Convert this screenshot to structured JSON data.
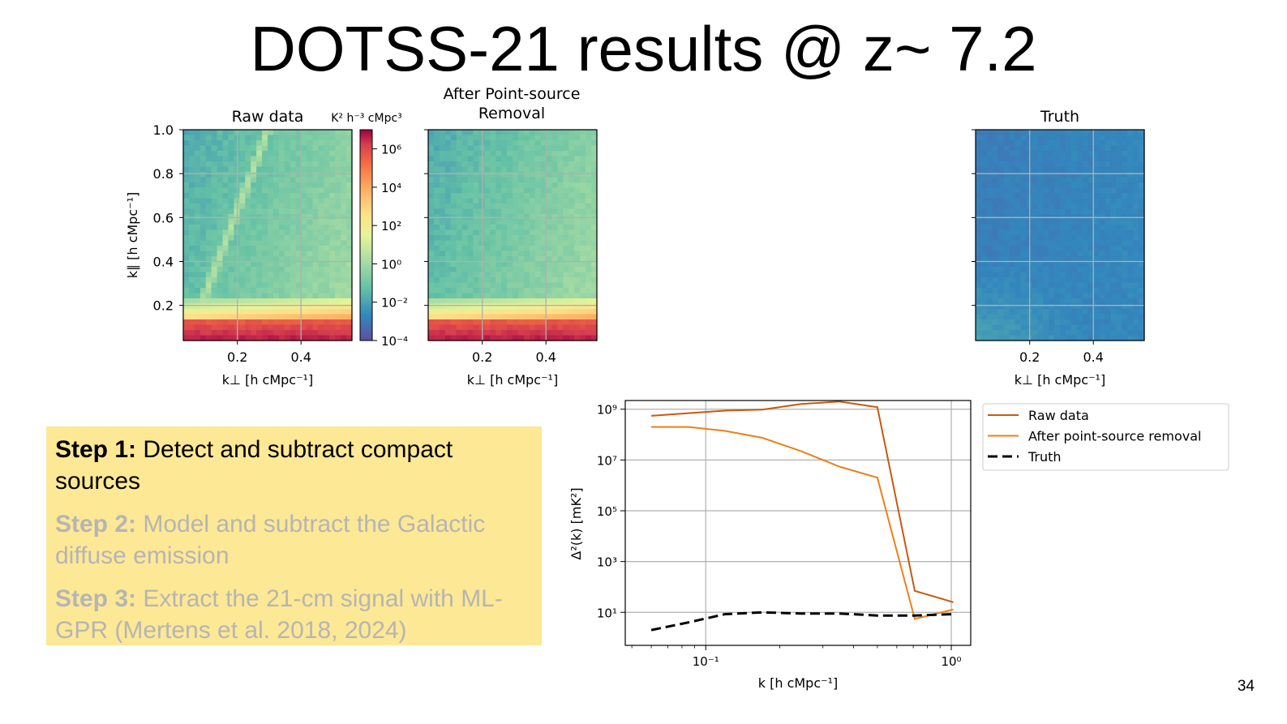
{
  "slide": {
    "title": "DOTSS-21 results @ z~ 7.2",
    "page_number": "34"
  },
  "steps": [
    {
      "label": "Step 1:",
      "text": "Detect and subtract compact sources",
      "active": true
    },
    {
      "label": "Step 2:",
      "text": "Model and subtract the Galactic diffuse emission",
      "active": false
    },
    {
      "label": "Step 3:",
      "text": "Extract the 21-cm signal with ML-GPR (Mertens et al. 2018, 2024)",
      "active": false
    }
  ],
  "chart_data": [
    {
      "type": "heatmap",
      "title": "Raw data",
      "xlabel": "k⊥ [h cMpc⁻¹]",
      "ylabel": "k∥ [h cMpc⁻¹]",
      "xlim": [
        0.03,
        0.56
      ],
      "ylim": [
        0.04,
        1.0
      ],
      "xticks": [
        "0.2",
        "0.4"
      ],
      "yticks": [
        "0.2",
        "0.4",
        "0.6",
        "0.8",
        "1.0"
      ],
      "grid": true,
      "colorbar": {
        "label": "K² h⁻³ cMpc³",
        "scale": "log",
        "range": [
          0.0001,
          10000000.0
        ],
        "ticks": [
          "10⁻⁴",
          "10⁻²",
          "10⁰",
          "10²",
          "10⁴",
          "10⁶"
        ],
        "colormap": "Spectral_r"
      },
      "features": {
        "foreground_band_kpar_max": 0.14,
        "point_source_wedge": true
      }
    },
    {
      "type": "heatmap",
      "title": "After Point-source Removal",
      "xlabel": "k⊥ [h cMpc⁻¹]",
      "xlim": [
        0.03,
        0.56
      ],
      "ylim": [
        0.04,
        1.0
      ],
      "xticks": [
        "0.2",
        "0.4"
      ],
      "grid": true,
      "features": {
        "foreground_band_kpar_max": 0.14,
        "point_source_wedge": false
      }
    },
    {
      "type": "heatmap",
      "title": "Truth",
      "xlabel": "k⊥ [h cMpc⁻¹]",
      "xlim": [
        0.03,
        0.56
      ],
      "ylim": [
        0.04,
        1.0
      ],
      "xticks": [
        "0.2",
        "0.4"
      ],
      "grid": true,
      "features": {
        "foreground_band_kpar_max": 0.0,
        "point_source_wedge": false
      }
    },
    {
      "type": "line",
      "xlabel": "k [h cMpc⁻¹]",
      "ylabel": "Δ²(k) [mK²]",
      "xscale": "log",
      "yscale": "log",
      "xlim": [
        0.047,
        1.2
      ],
      "ylim": [
        0.5,
        2200000000.0
      ],
      "xticks": [
        "10⁻¹",
        "10⁰"
      ],
      "yticks": [
        "10¹",
        "10³",
        "10⁵",
        "10⁷",
        "10⁹"
      ],
      "grid": true,
      "legend": "outside-right",
      "series": [
        {
          "name": "Raw data",
          "color": "#c55a11",
          "dash": "solid",
          "x": [
            0.06,
            0.085,
            0.12,
            0.17,
            0.245,
            0.35,
            0.5,
            0.71,
            1.02
          ],
          "y": [
            550000000.0,
            700000000.0,
            880000000.0,
            960000000.0,
            1600000000.0,
            2000000000.0,
            1200000000.0,
            70,
            25
          ]
        },
        {
          "name": "After point-source removal",
          "color": "#e8821a",
          "dash": "solid",
          "x": [
            0.06,
            0.085,
            0.12,
            0.17,
            0.245,
            0.35,
            0.5,
            0.71,
            1.02
          ],
          "y": [
            200000000.0,
            200000000.0,
            140000000.0,
            75000000.0,
            22000000.0,
            5500000.0,
            2000000.0,
            5.5,
            13
          ]
        },
        {
          "name": "Truth",
          "color": "#000000",
          "dash": "dashed",
          "x": [
            0.06,
            0.085,
            0.12,
            0.17,
            0.245,
            0.35,
            0.5,
            0.71,
            1.02
          ],
          "y": [
            2.0,
            4.0,
            8.5,
            10,
            9,
            9,
            7.5,
            7.5,
            8.5
          ]
        }
      ]
    }
  ]
}
